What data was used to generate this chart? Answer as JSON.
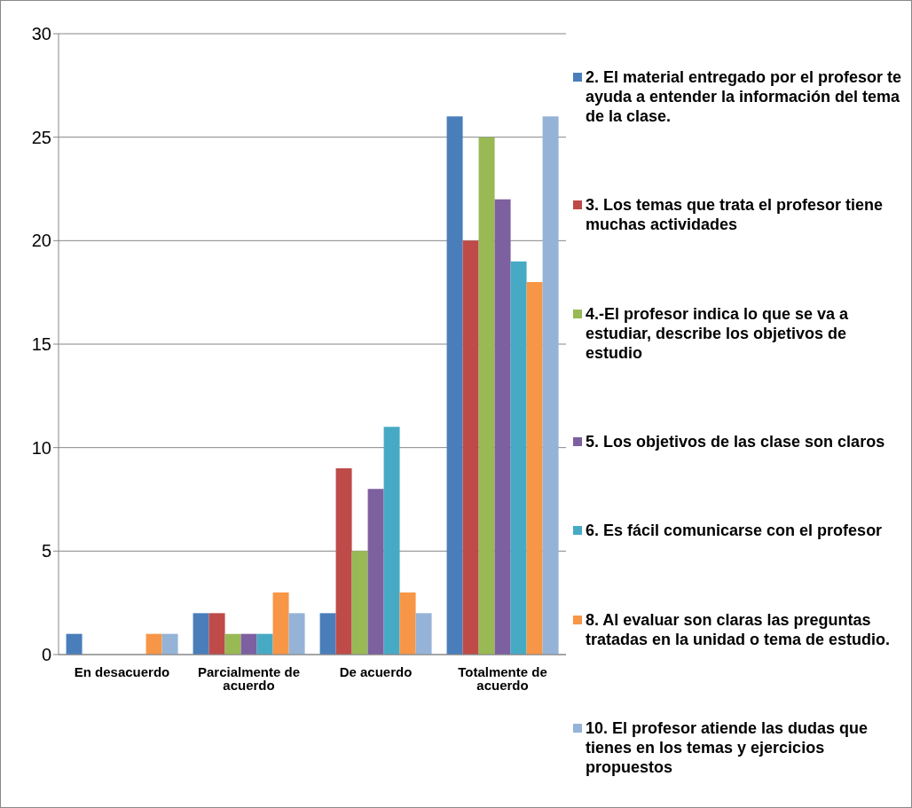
{
  "chart_data": {
    "type": "bar",
    "categories": [
      "En desacuerdo",
      "Parcialmente de acuerdo",
      "De acuerdo",
      "Totalmente de acuerdo"
    ],
    "series": [
      {
        "name": "2. El material entregado por el profesor te ayuda a entender la información del tema de la clase.",
        "color": "#4a7ebb",
        "values": [
          1,
          2,
          2,
          26
        ]
      },
      {
        "name": "3. Los temas que trata el profesor tiene muchas actividades",
        "color": "#be4b48",
        "values": [
          0,
          2,
          9,
          20
        ]
      },
      {
        "name": "4.-El profesor indica lo que se va a estudiar, describe los objetivos de estudio",
        "color": "#98b954",
        "values": [
          0,
          1,
          5,
          25
        ]
      },
      {
        "name": "5. Los objetivos de las clase son claros",
        "color": "#7d60a0",
        "values": [
          0,
          1,
          8,
          22
        ]
      },
      {
        "name": "6. Es fácil comunicarse con el profesor",
        "color": "#46aac5",
        "values": [
          0,
          1,
          11,
          19
        ]
      },
      {
        "name": "8. Al evaluar son claras las preguntas tratadas en la unidad o tema de estudio.",
        "color": "#f79646",
        "values": [
          1,
          3,
          3,
          18
        ]
      },
      {
        "name": "10. El profesor atiende las dudas que tienes en los temas y ejercicios propuestos",
        "color": "#95b3d7",
        "values": [
          1,
          2,
          2,
          26
        ]
      }
    ],
    "ylim": [
      0,
      30
    ],
    "yticks": [
      0,
      5,
      10,
      15,
      20,
      25,
      30
    ],
    "grid": "y",
    "legend": "right"
  }
}
